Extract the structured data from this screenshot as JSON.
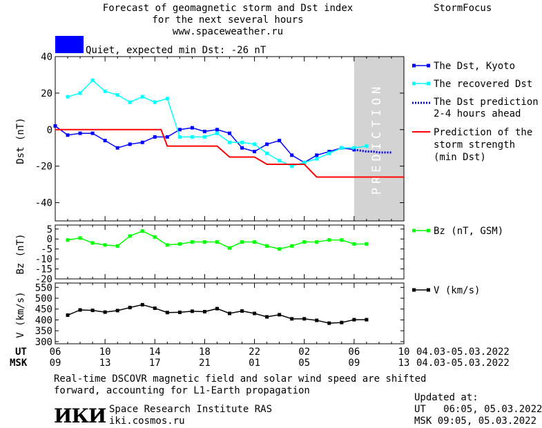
{
  "header": {
    "title_line1": "Forecast of geomagnetic storm and Dst index",
    "title_line2": "for the next several hours",
    "url": "www.spaceweather.ru",
    "brand": "StormFocus",
    "status_text": "Quiet, expected min Dst: -26 nT",
    "status_color": "#0000ff"
  },
  "prediction_band_label": "PREDICTION",
  "legend": {
    "dst_kyoto": "The Dst, Kyoto",
    "recovered": "The recovered Dst",
    "pred_line1": "The Dst prediction",
    "pred_line2": "2-4 hours ahead",
    "strength_line1": "Prediction of the",
    "strength_line2": "storm strength",
    "strength_line3": "(min Dst)",
    "bz": "Bz (nT, GSM)",
    "v": "V (km/s)"
  },
  "time_axis": {
    "ut_label": "UT",
    "msk_label": "MSK",
    "ut_ticks": [
      "06",
      "10",
      "14",
      "18",
      "22",
      "02",
      "06",
      "10"
    ],
    "msk_ticks": [
      "09",
      "13",
      "17",
      "21",
      "01",
      "05",
      "09",
      "13"
    ],
    "date_range": "04.03-05.03.2022"
  },
  "footer": {
    "note_line1": "Real-time DSCOVR magnetic field and solar wind speed are shifted",
    "note_line2": "forward, accounting for L1-Earth propagation",
    "logo_text": "ИКИ",
    "institute": "Space Research Institute RAS",
    "site": "iki.cosmos.ru",
    "updated_label": "Updated at:",
    "updated_ut": "UT   06:05, 05.03.2022",
    "updated_msk": "MSK 09:05, 05.03.2022"
  },
  "chart_data": [
    {
      "type": "line",
      "ylabel": "Dst (nT)",
      "ylim": [
        -50,
        40
      ],
      "yticks": [
        40,
        20,
        0,
        -20,
        -40
      ],
      "xlim_hours": [
        0,
        28
      ],
      "prediction_start_hour": 24,
      "series": [
        {
          "name": "The Dst, Kyoto",
          "color": "#0000ff",
          "x": [
            0,
            1,
            2,
            3,
            4,
            5,
            6,
            7,
            8,
            9,
            10,
            11,
            12,
            13,
            14,
            15,
            16,
            17,
            18,
            19,
            20,
            21,
            22,
            23,
            24
          ],
          "y": [
            2,
            -3,
            -2,
            -2,
            -6,
            -10,
            -8,
            -7,
            -4,
            -4,
            0,
            1,
            -1,
            0,
            -2,
            -10,
            -12,
            -8,
            -6,
            -14,
            -18,
            -14,
            -12,
            -10,
            -11
          ]
        },
        {
          "name": "The recovered Dst",
          "color": "#00ffff",
          "x": [
            1,
            2,
            3,
            4,
            5,
            6,
            7,
            8,
            9,
            10,
            11,
            12,
            13,
            14,
            15,
            16,
            17,
            18,
            19,
            20,
            21,
            22,
            23,
            24,
            25
          ],
          "y": [
            18,
            20,
            27,
            21,
            19,
            15,
            18,
            15,
            17,
            -4,
            -4,
            -4,
            -2,
            -7,
            -7,
            -8,
            -13,
            -17,
            -20,
            -18,
            -16,
            -13,
            -10,
            -10,
            -9
          ]
        },
        {
          "name": "The Dst prediction 2-4 hours ahead",
          "color": "#0000ff",
          "dotted": true,
          "x": [
            24,
            24.5,
            25,
            25.5,
            26,
            26.5,
            27
          ],
          "y": [
            -11,
            -11.5,
            -12,
            -12,
            -12.5,
            -12.5,
            -12.5
          ]
        },
        {
          "name": "Prediction of the storm strength (min Dst)",
          "color": "#ff0000",
          "step": true,
          "x": [
            0,
            8.5,
            9,
            13,
            14,
            16,
            17,
            20,
            21,
            28
          ],
          "y": [
            0,
            0,
            -9,
            -9,
            -15,
            -15,
            -19,
            -19,
            -26,
            -26
          ]
        }
      ]
    },
    {
      "type": "line",
      "ylabel": "Bz (nT)",
      "ylim": [
        -20,
        7
      ],
      "yticks": [
        5,
        0,
        -5,
        -10,
        -15,
        -20
      ],
      "series": [
        {
          "name": "Bz (nT, GSM)",
          "color": "#00ff00",
          "x": [
            1,
            2,
            3,
            4,
            5,
            6,
            7,
            8,
            9,
            10,
            11,
            12,
            13,
            14,
            15,
            16,
            17,
            18,
            19,
            20,
            21,
            22,
            23,
            24,
            25
          ],
          "y": [
            -0.5,
            0.5,
            -2,
            -3,
            -3.5,
            1.5,
            4,
            1,
            -3,
            -2.5,
            -1.5,
            -1.5,
            -1.5,
            -4.5,
            -1.5,
            -1.5,
            -3.5,
            -5,
            -3.5,
            -1.5,
            -1.5,
            -0.5,
            -0.5,
            -2.5,
            -2.5
          ]
        }
      ]
    },
    {
      "type": "line",
      "ylabel": "V (km/s)",
      "ylim": [
        290,
        570
      ],
      "yticks": [
        550,
        500,
        450,
        400,
        350,
        300
      ],
      "series": [
        {
          "name": "V (km/s)",
          "color": "#000000",
          "x": [
            1,
            2,
            3,
            4,
            5,
            6,
            7,
            8,
            9,
            10,
            11,
            12,
            13,
            14,
            15,
            16,
            17,
            18,
            19,
            20,
            21,
            22,
            23,
            24,
            25
          ],
          "y": [
            422,
            446,
            444,
            436,
            443,
            457,
            470,
            454,
            434,
            435,
            440,
            438,
            452,
            430,
            441,
            430,
            414,
            424,
            405,
            405,
            398,
            385,
            388,
            401,
            401
          ]
        }
      ]
    }
  ]
}
